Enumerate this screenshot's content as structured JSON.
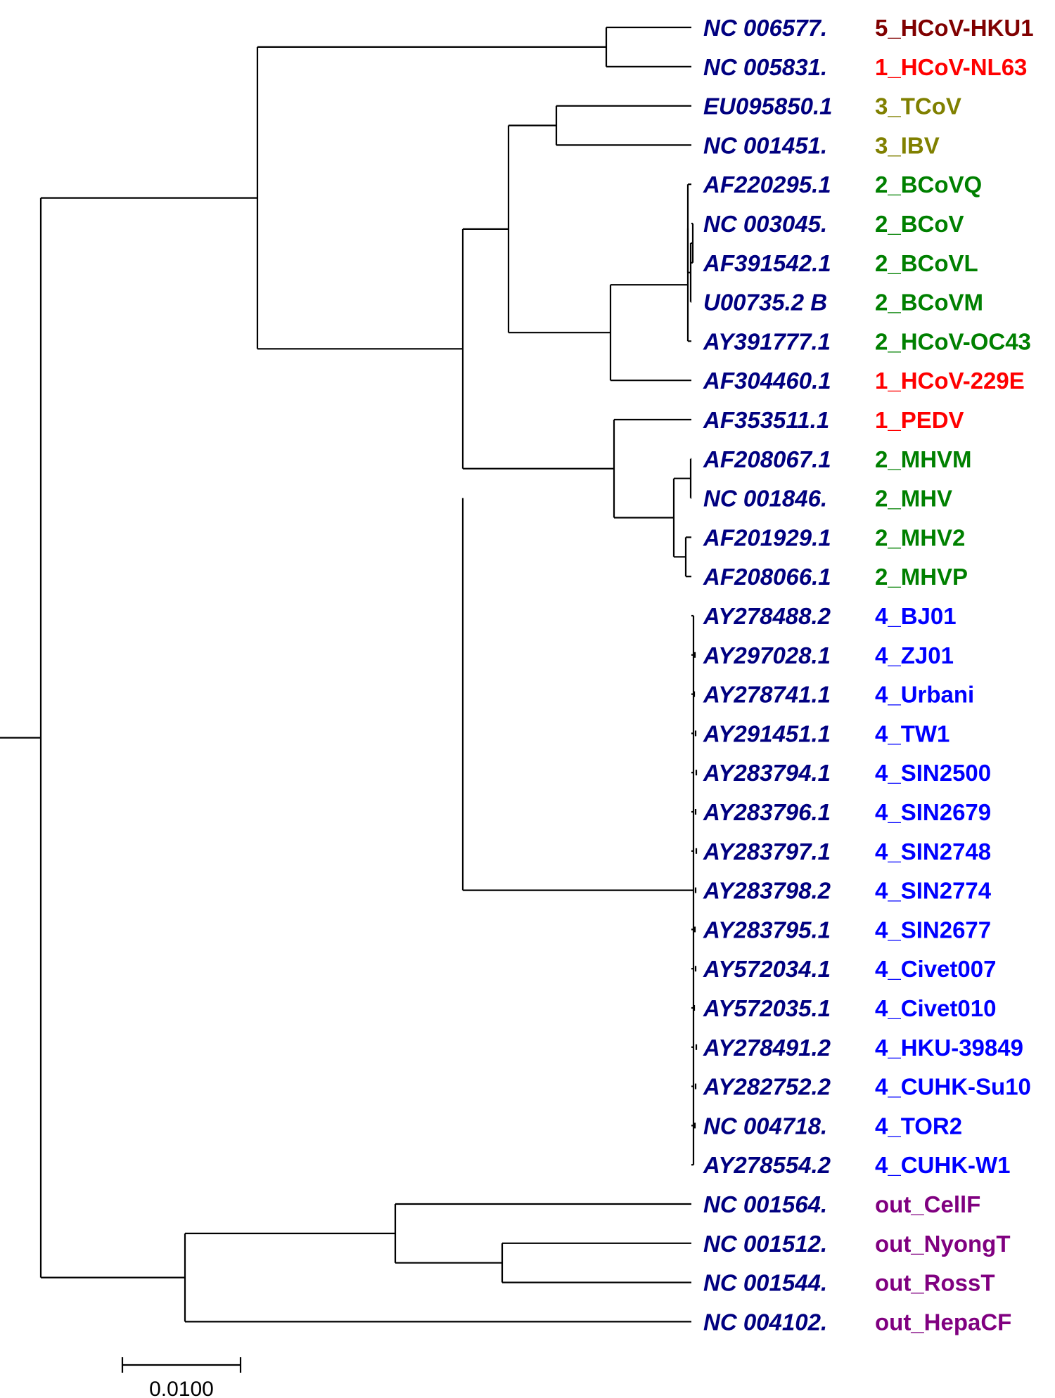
{
  "group_colors": {
    "5": "#800000",
    "1": "#ff0000",
    "3": "#808000",
    "2": "#008000",
    "4": "#0000ff",
    "out": "#800080"
  },
  "leaves": [
    {
      "accession": "NC 006577.",
      "label": "5_HCoV-HKU1",
      "group": "5"
    },
    {
      "accession": "NC 005831.",
      "label": "1_HCoV-NL63",
      "group": "1"
    },
    {
      "accession": "EU095850.1",
      "label": "3_TCoV",
      "group": "3"
    },
    {
      "accession": "NC 001451.",
      "label": "3_IBV",
      "group": "3"
    },
    {
      "accession": "AF220295.1",
      "label": "2_BCoVQ",
      "group": "2"
    },
    {
      "accession": "NC 003045.",
      "label": "2_BCoV",
      "group": "2"
    },
    {
      "accession": "AF391542.1",
      "label": "2_BCoVL",
      "group": "2"
    },
    {
      "accession": "U00735.2 B",
      "label": "2_BCoVM",
      "group": "2"
    },
    {
      "accession": "AY391777.1",
      "label": "2_HCoV-OC43",
      "group": "2"
    },
    {
      "accession": "AF304460.1",
      "label": "1_HCoV-229E",
      "group": "1"
    },
    {
      "accession": "AF353511.1",
      "label": "1_PEDV",
      "group": "1"
    },
    {
      "accession": "AF208067.1",
      "label": "2_MHVM",
      "group": "2"
    },
    {
      "accession": "NC 001846.",
      "label": "2_MHV",
      "group": "2"
    },
    {
      "accession": "AF201929.1",
      "label": "2_MHV2",
      "group": "2"
    },
    {
      "accession": "AF208066.1",
      "label": "2_MHVP",
      "group": "2"
    },
    {
      "accession": "AY278488.2",
      "label": "4_BJ01",
      "group": "4"
    },
    {
      "accession": "AY297028.1",
      "label": "4_ZJ01",
      "group": "4"
    },
    {
      "accession": "AY278741.1",
      "label": "4_Urbani",
      "group": "4"
    },
    {
      "accession": "AY291451.1",
      "label": "4_TW1",
      "group": "4"
    },
    {
      "accession": "AY283794.1",
      "label": "4_SIN2500",
      "group": "4"
    },
    {
      "accession": "AY283796.1",
      "label": "4_SIN2679",
      "group": "4"
    },
    {
      "accession": "AY283797.1",
      "label": "4_SIN2748",
      "group": "4"
    },
    {
      "accession": "AY283798.2",
      "label": "4_SIN2774",
      "group": "4"
    },
    {
      "accession": "AY283795.1",
      "label": "4_SIN2677",
      "group": "4"
    },
    {
      "accession": "AY572034.1",
      "label": "4_Civet007",
      "group": "4"
    },
    {
      "accession": "AY572035.1",
      "label": "4_Civet010",
      "group": "4"
    },
    {
      "accession": "AY278491.2",
      "label": "4_HKU-39849",
      "group": "4"
    },
    {
      "accession": "AY282752.2",
      "label": "4_CUHK-Su10",
      "group": "4"
    },
    {
      "accession": "NC 004718.",
      "label": "4_TOR2",
      "group": "4"
    },
    {
      "accession": "AY278554.2",
      "label": "4_CUHK-W1",
      "group": "4"
    },
    {
      "accession": "NC 001564.",
      "label": "out_CellF",
      "group": "out"
    },
    {
      "accession": "NC 001512.",
      "label": "out_NyongT",
      "group": "out"
    },
    {
      "accession": "NC 001544.",
      "label": "out_RossT",
      "group": "out"
    },
    {
      "accession": "NC 004102.",
      "label": "out_HepaCF",
      "group": "out"
    }
  ],
  "scale_bar": {
    "label": "0.0100",
    "value": 0.01
  }
}
